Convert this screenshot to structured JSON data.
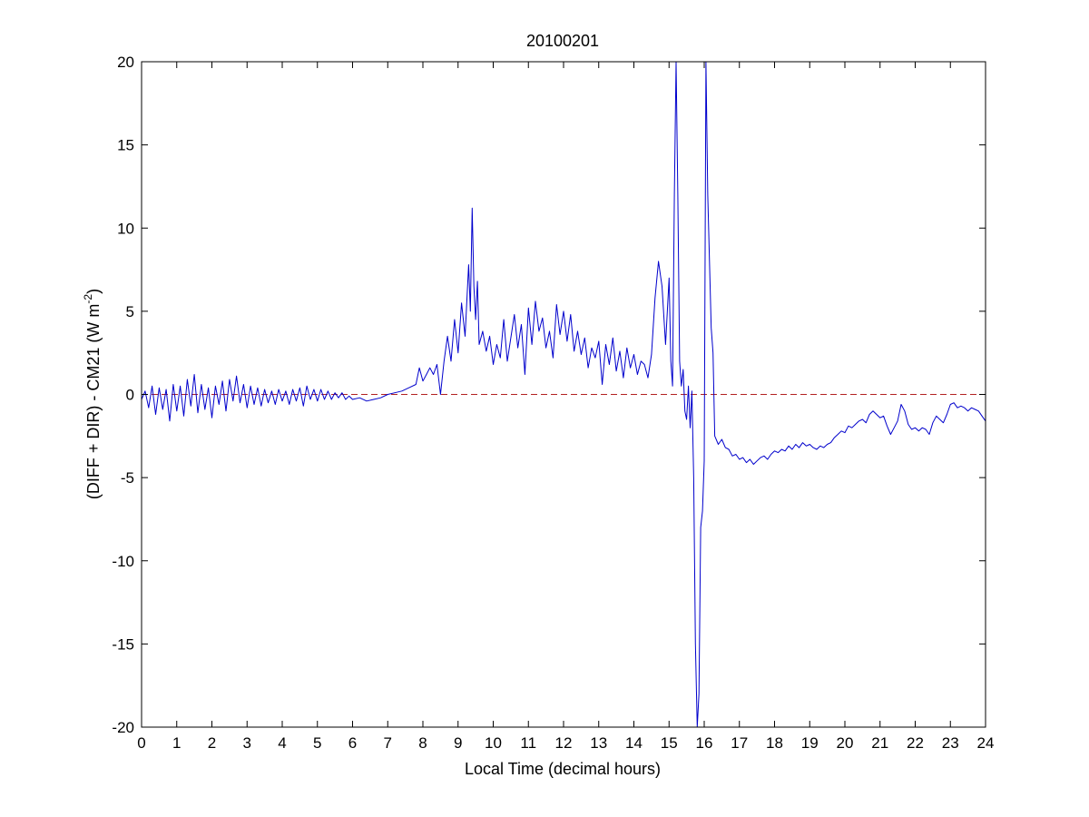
{
  "chart_data": {
    "type": "line",
    "title": "20100201",
    "xlabel": "Local Time (decimal hours)",
    "ylabel": {
      "prefix": "(DIFF + DIR) - CM21 (W m",
      "superscript": "-2",
      "suffix": ")"
    },
    "xlim": [
      0,
      24
    ],
    "ylim": [
      -20,
      20
    ],
    "xticks": [
      0,
      1,
      2,
      3,
      4,
      5,
      6,
      7,
      8,
      9,
      10,
      11,
      12,
      13,
      14,
      15,
      16,
      17,
      18,
      19,
      20,
      21,
      22,
      23,
      24
    ],
    "yticks": [
      -20,
      -15,
      -10,
      -5,
      0,
      5,
      10,
      15,
      20
    ],
    "grid": false,
    "reference_line": {
      "y": 0,
      "color": "#b22222",
      "style": "dashed"
    },
    "series": [
      {
        "color": "#0000cc",
        "points": [
          [
            0.0,
            -0.3
          ],
          [
            0.1,
            0.2
          ],
          [
            0.2,
            -0.8
          ],
          [
            0.3,
            0.5
          ],
          [
            0.4,
            -1.2
          ],
          [
            0.5,
            0.4
          ],
          [
            0.6,
            -0.9
          ],
          [
            0.7,
            0.3
          ],
          [
            0.8,
            -1.6
          ],
          [
            0.9,
            0.6
          ],
          [
            1.0,
            -1.0
          ],
          [
            1.1,
            0.5
          ],
          [
            1.2,
            -1.3
          ],
          [
            1.3,
            0.9
          ],
          [
            1.4,
            -0.7
          ],
          [
            1.5,
            1.2
          ],
          [
            1.6,
            -1.1
          ],
          [
            1.7,
            0.6
          ],
          [
            1.8,
            -0.9
          ],
          [
            1.9,
            0.4
          ],
          [
            2.0,
            -1.4
          ],
          [
            2.1,
            0.5
          ],
          [
            2.2,
            -0.6
          ],
          [
            2.3,
            0.8
          ],
          [
            2.4,
            -1.0
          ],
          [
            2.5,
            0.9
          ],
          [
            2.6,
            -0.4
          ],
          [
            2.7,
            1.1
          ],
          [
            2.8,
            -0.5
          ],
          [
            2.9,
            0.6
          ],
          [
            3.0,
            -0.8
          ],
          [
            3.1,
            0.5
          ],
          [
            3.2,
            -0.6
          ],
          [
            3.3,
            0.4
          ],
          [
            3.4,
            -0.7
          ],
          [
            3.5,
            0.3
          ],
          [
            3.6,
            -0.5
          ],
          [
            3.7,
            0.2
          ],
          [
            3.8,
            -0.6
          ],
          [
            3.9,
            0.3
          ],
          [
            4.0,
            -0.4
          ],
          [
            4.1,
            0.2
          ],
          [
            4.2,
            -0.6
          ],
          [
            4.3,
            0.3
          ],
          [
            4.4,
            -0.4
          ],
          [
            4.5,
            0.4
          ],
          [
            4.6,
            -0.7
          ],
          [
            4.7,
            0.5
          ],
          [
            4.8,
            -0.3
          ],
          [
            4.9,
            0.3
          ],
          [
            5.0,
            -0.4
          ],
          [
            5.1,
            0.3
          ],
          [
            5.2,
            -0.3
          ],
          [
            5.3,
            0.2
          ],
          [
            5.4,
            -0.3
          ],
          [
            5.5,
            0.1
          ],
          [
            5.6,
            -0.2
          ],
          [
            5.7,
            0.1
          ],
          [
            5.8,
            -0.3
          ],
          [
            5.9,
            -0.1
          ],
          [
            6.0,
            -0.3
          ],
          [
            6.2,
            -0.2
          ],
          [
            6.4,
            -0.4
          ],
          [
            6.6,
            -0.3
          ],
          [
            6.8,
            -0.2
          ],
          [
            7.0,
            0.0
          ],
          [
            7.2,
            0.1
          ],
          [
            7.4,
            0.2
          ],
          [
            7.6,
            0.4
          ],
          [
            7.8,
            0.6
          ],
          [
            7.9,
            1.6
          ],
          [
            8.0,
            0.8
          ],
          [
            8.1,
            1.2
          ],
          [
            8.2,
            1.6
          ],
          [
            8.3,
            1.2
          ],
          [
            8.4,
            1.8
          ],
          [
            8.5,
            0.0
          ],
          [
            8.6,
            2.0
          ],
          [
            8.7,
            3.5
          ],
          [
            8.8,
            2.0
          ],
          [
            8.9,
            4.5
          ],
          [
            9.0,
            2.5
          ],
          [
            9.1,
            5.5
          ],
          [
            9.2,
            3.5
          ],
          [
            9.3,
            7.8
          ],
          [
            9.35,
            5.0
          ],
          [
            9.4,
            11.2
          ],
          [
            9.45,
            6.5
          ],
          [
            9.5,
            4.5
          ],
          [
            9.55,
            6.8
          ],
          [
            9.6,
            3.0
          ],
          [
            9.7,
            3.8
          ],
          [
            9.8,
            2.6
          ],
          [
            9.9,
            3.5
          ],
          [
            10.0,
            1.8
          ],
          [
            10.1,
            3.0
          ],
          [
            10.2,
            2.2
          ],
          [
            10.3,
            4.5
          ],
          [
            10.4,
            2.0
          ],
          [
            10.5,
            3.4
          ],
          [
            10.6,
            4.8
          ],
          [
            10.7,
            2.8
          ],
          [
            10.8,
            4.2
          ],
          [
            10.9,
            1.2
          ],
          [
            11.0,
            5.2
          ],
          [
            11.1,
            3.0
          ],
          [
            11.2,
            5.6
          ],
          [
            11.3,
            3.8
          ],
          [
            11.4,
            4.6
          ],
          [
            11.5,
            2.8
          ],
          [
            11.6,
            3.8
          ],
          [
            11.7,
            2.2
          ],
          [
            11.8,
            5.4
          ],
          [
            11.9,
            3.6
          ],
          [
            12.0,
            5.0
          ],
          [
            12.1,
            3.2
          ],
          [
            12.2,
            4.8
          ],
          [
            12.3,
            2.6
          ],
          [
            12.4,
            3.8
          ],
          [
            12.5,
            2.4
          ],
          [
            12.6,
            3.4
          ],
          [
            12.7,
            1.6
          ],
          [
            12.8,
            2.8
          ],
          [
            12.9,
            2.2
          ],
          [
            13.0,
            3.2
          ],
          [
            13.1,
            0.6
          ],
          [
            13.2,
            3.0
          ],
          [
            13.3,
            1.8
          ],
          [
            13.4,
            3.4
          ],
          [
            13.5,
            1.4
          ],
          [
            13.6,
            2.6
          ],
          [
            13.7,
            1.0
          ],
          [
            13.8,
            2.8
          ],
          [
            13.9,
            1.6
          ],
          [
            14.0,
            2.4
          ],
          [
            14.1,
            1.2
          ],
          [
            14.2,
            2.0
          ],
          [
            14.3,
            1.8
          ],
          [
            14.4,
            1.0
          ],
          [
            14.5,
            2.4
          ],
          [
            14.6,
            5.8
          ],
          [
            14.7,
            8.0
          ],
          [
            14.8,
            6.5
          ],
          [
            14.9,
            3.0
          ],
          [
            15.0,
            7.0
          ],
          [
            15.05,
            2.0
          ],
          [
            15.1,
            0.5
          ],
          [
            15.15,
            12.0
          ],
          [
            15.2,
            20.0
          ],
          [
            15.25,
            12.0
          ],
          [
            15.3,
            2.0
          ],
          [
            15.35,
            0.5
          ],
          [
            15.4,
            1.5
          ],
          [
            15.45,
            -1.0
          ],
          [
            15.5,
            -1.5
          ],
          [
            15.55,
            0.5
          ],
          [
            15.6,
            -2.0
          ],
          [
            15.65,
            0.2
          ],
          [
            15.7,
            -5.0
          ],
          [
            15.75,
            -15.0
          ],
          [
            15.8,
            -20.0
          ],
          [
            15.85,
            -18.0
          ],
          [
            15.9,
            -8.0
          ],
          [
            15.95,
            -7.0
          ],
          [
            16.0,
            -4.0
          ],
          [
            16.05,
            20.0
          ],
          [
            16.1,
            12.0
          ],
          [
            16.15,
            8.0
          ],
          [
            16.2,
            4.0
          ],
          [
            16.25,
            2.5
          ],
          [
            16.3,
            -2.5
          ],
          [
            16.4,
            -3.0
          ],
          [
            16.5,
            -2.7
          ],
          [
            16.6,
            -3.2
          ],
          [
            16.7,
            -3.3
          ],
          [
            16.8,
            -3.7
          ],
          [
            16.9,
            -3.6
          ],
          [
            17.0,
            -3.9
          ],
          [
            17.1,
            -3.8
          ],
          [
            17.2,
            -4.1
          ],
          [
            17.3,
            -3.9
          ],
          [
            17.4,
            -4.2
          ],
          [
            17.5,
            -4.0
          ],
          [
            17.6,
            -3.8
          ],
          [
            17.7,
            -3.7
          ],
          [
            17.8,
            -3.9
          ],
          [
            17.9,
            -3.6
          ],
          [
            18.0,
            -3.4
          ],
          [
            18.1,
            -3.5
          ],
          [
            18.2,
            -3.3
          ],
          [
            18.3,
            -3.4
          ],
          [
            18.4,
            -3.1
          ],
          [
            18.5,
            -3.3
          ],
          [
            18.6,
            -3.0
          ],
          [
            18.7,
            -3.2
          ],
          [
            18.8,
            -2.9
          ],
          [
            18.9,
            -3.1
          ],
          [
            19.0,
            -3.0
          ],
          [
            19.1,
            -3.2
          ],
          [
            19.2,
            -3.3
          ],
          [
            19.3,
            -3.1
          ],
          [
            19.4,
            -3.2
          ],
          [
            19.5,
            -3.0
          ],
          [
            19.6,
            -2.9
          ],
          [
            19.7,
            -2.6
          ],
          [
            19.8,
            -2.4
          ],
          [
            19.9,
            -2.2
          ],
          [
            20.0,
            -2.3
          ],
          [
            20.1,
            -1.9
          ],
          [
            20.2,
            -2.0
          ],
          [
            20.3,
            -1.8
          ],
          [
            20.4,
            -1.6
          ],
          [
            20.5,
            -1.5
          ],
          [
            20.6,
            -1.7
          ],
          [
            20.7,
            -1.2
          ],
          [
            20.8,
            -1.0
          ],
          [
            20.9,
            -1.2
          ],
          [
            21.0,
            -1.4
          ],
          [
            21.1,
            -1.3
          ],
          [
            21.2,
            -1.9
          ],
          [
            21.3,
            -2.4
          ],
          [
            21.4,
            -2.0
          ],
          [
            21.5,
            -1.6
          ],
          [
            21.6,
            -0.6
          ],
          [
            21.7,
            -1.0
          ],
          [
            21.8,
            -1.8
          ],
          [
            21.9,
            -2.1
          ],
          [
            22.0,
            -2.0
          ],
          [
            22.1,
            -2.2
          ],
          [
            22.2,
            -2.0
          ],
          [
            22.3,
            -2.1
          ],
          [
            22.4,
            -2.4
          ],
          [
            22.5,
            -1.7
          ],
          [
            22.6,
            -1.3
          ],
          [
            22.7,
            -1.5
          ],
          [
            22.8,
            -1.7
          ],
          [
            22.9,
            -1.2
          ],
          [
            23.0,
            -0.6
          ],
          [
            23.1,
            -0.5
          ],
          [
            23.2,
            -0.8
          ],
          [
            23.3,
            -0.7
          ],
          [
            23.4,
            -0.8
          ],
          [
            23.5,
            -1.0
          ],
          [
            23.6,
            -0.8
          ],
          [
            23.7,
            -0.9
          ],
          [
            23.8,
            -1.0
          ],
          [
            23.9,
            -1.3
          ],
          [
            24.0,
            -1.6
          ]
        ]
      }
    ]
  }
}
